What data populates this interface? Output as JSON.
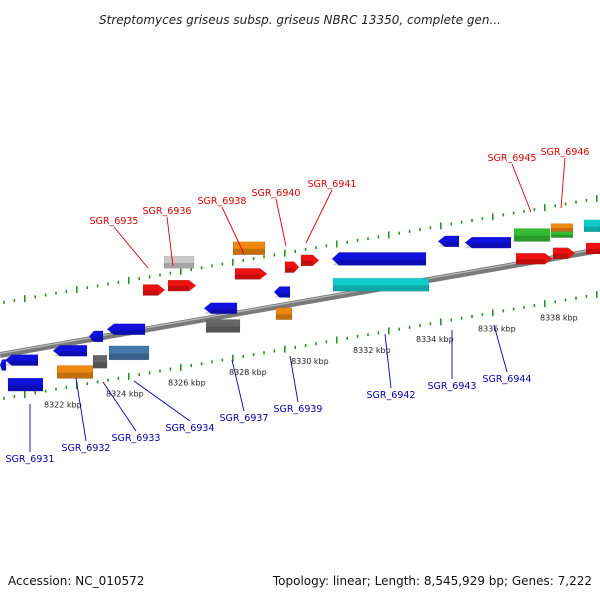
{
  "title": "Streptomyces griseus subsp. griseus NBRC 13350, complete gen...",
  "accession": "Accession: NC_010572",
  "summary": "Topology: linear; Length: 8,545,929 bp; Genes: 7,222",
  "colors": {
    "top_label": "#dd0000",
    "bottom_label": "#0000aa",
    "axis": "#888888",
    "tick": "#229922",
    "red": "#ee1111",
    "blue": "#1111dd",
    "orange": "#ee8811",
    "cyan": "#11cccc",
    "green": "#33bb33",
    "gray": "#aaaaaa",
    "darkgray": "#666666",
    "steelblue": "#4477aa",
    "lightgray": "#cccccc"
  },
  "kbp_labels": [
    "8322 kbp",
    "8324 kbp",
    "8326 kbp",
    "8328 kbp",
    "8330 kbp",
    "8332 kbp",
    "8334 kbp",
    "8336 kbp",
    "8338 kbp"
  ],
  "top_genes": [
    "SGR_6935",
    "SGR_6936",
    "SGR_6938",
    "SGR_6940",
    "SGR_6941",
    "SGR_6945",
    "SGR_6946"
  ],
  "bottom_genes": [
    "SGR_6931",
    "SGR_6932",
    "SGR_6933",
    "SGR_6934",
    "SGR_6937",
    "SGR_6939",
    "SGR_6942",
    "SGR_6943",
    "SGR_6944"
  ]
}
